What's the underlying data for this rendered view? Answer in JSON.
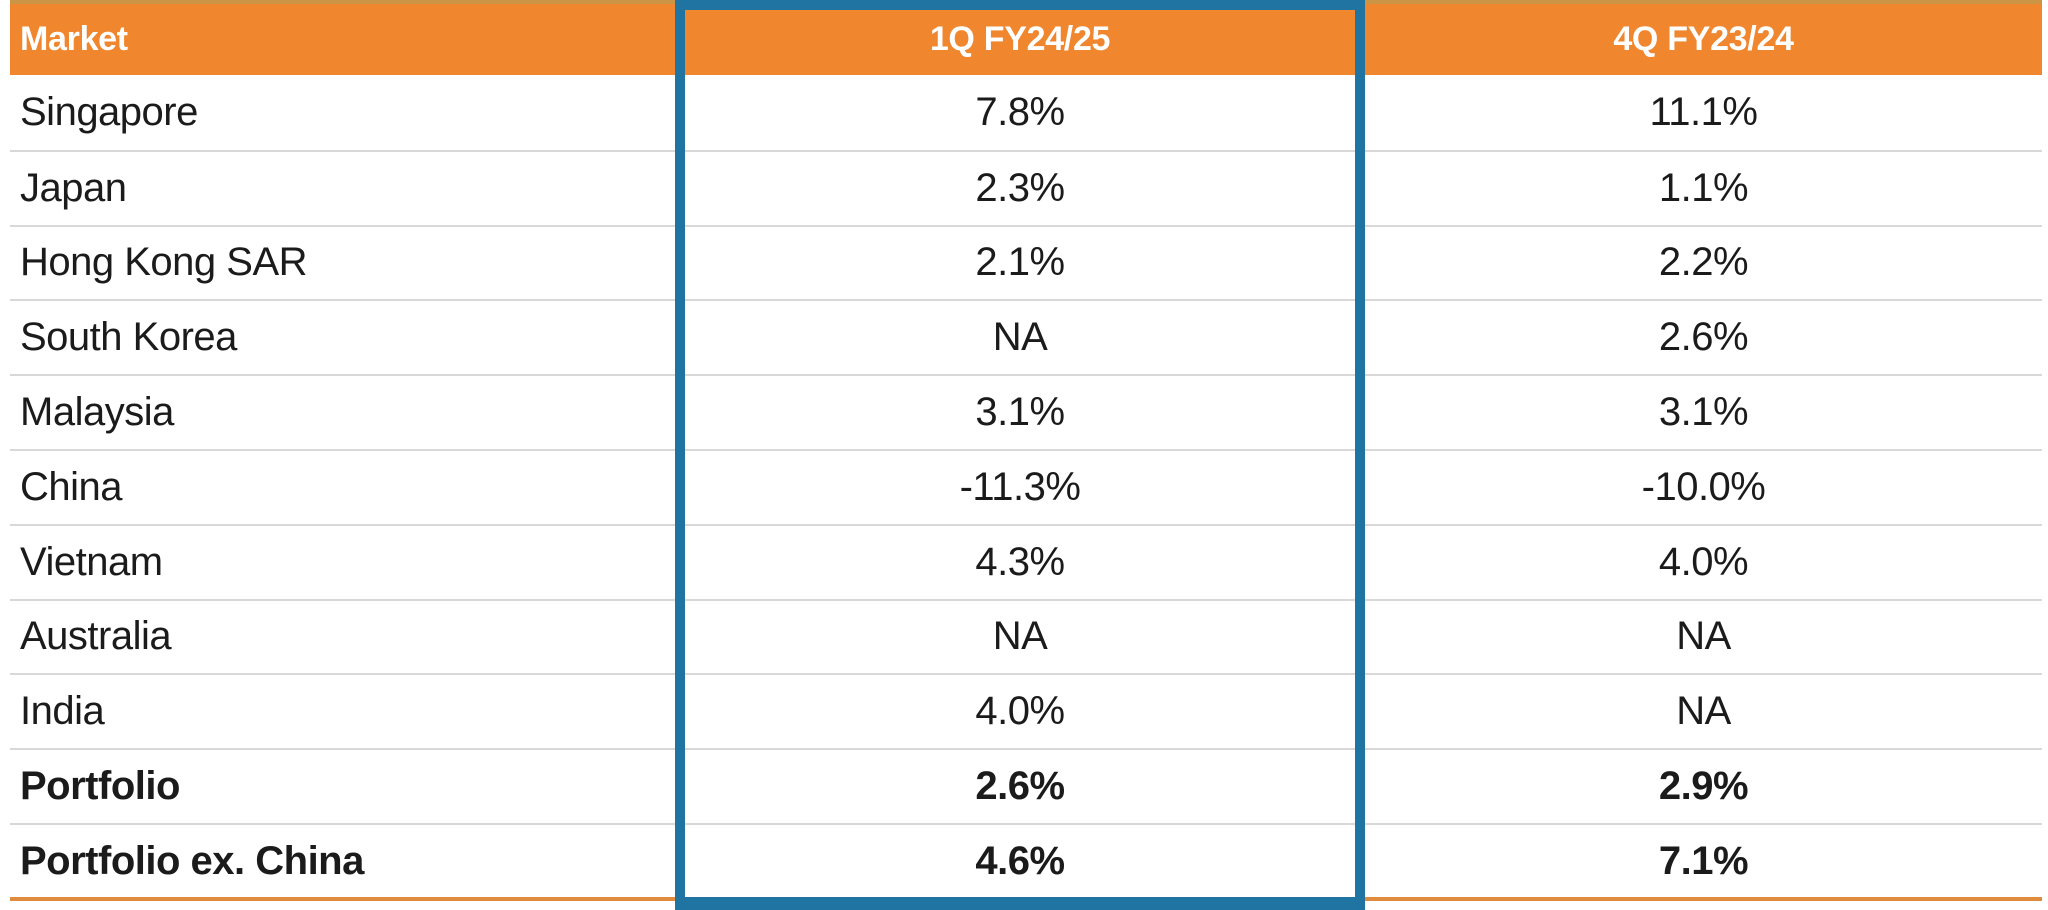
{
  "table": {
    "columns": [
      {
        "label": "Market",
        "align": "left"
      },
      {
        "label": "1Q FY24/25",
        "align": "center",
        "highlighted": true
      },
      {
        "label": "4Q FY23/24",
        "align": "center"
      }
    ],
    "rows": [
      {
        "market": "Singapore",
        "q1": "7.8%",
        "q4": "11.1%",
        "bold": false
      },
      {
        "market": "Japan",
        "q1": "2.3%",
        "q4": "1.1%",
        "bold": false
      },
      {
        "market": "Hong Kong SAR",
        "q1": "2.1%",
        "q4": "2.2%",
        "bold": false
      },
      {
        "market": "South Korea",
        "q1": "NA",
        "q4": "2.6%",
        "bold": false
      },
      {
        "market": "Malaysia",
        "q1": "3.1%",
        "q4": "3.1%",
        "bold": false
      },
      {
        "market": "China",
        "q1": "-11.3%",
        "q4": "-10.0%",
        "bold": false
      },
      {
        "market": "Vietnam",
        "q1": "4.3%",
        "q4": "4.0%",
        "bold": false
      },
      {
        "market": "Australia",
        "q1": "NA",
        "q4": "NA",
        "bold": false
      },
      {
        "market": "India",
        "q1": "4.0%",
        "q4": "NA",
        "bold": false
      },
      {
        "market": "Portfolio",
        "q1": "2.6%",
        "q4": "2.9%",
        "bold": true
      },
      {
        "market": "Portfolio ex. China",
        "q1": "4.6%",
        "q4": "7.1%",
        "bold": true
      }
    ]
  },
  "chart_data": {
    "type": "table",
    "columns": [
      "Market",
      "1Q FY24/25",
      "4Q FY23/24"
    ],
    "rows": [
      [
        "Singapore",
        "7.8%",
        "11.1%"
      ],
      [
        "Japan",
        "2.3%",
        "1.1%"
      ],
      [
        "Hong Kong SAR",
        "2.1%",
        "2.2%"
      ],
      [
        "South Korea",
        "NA",
        "2.6%"
      ],
      [
        "Malaysia",
        "3.1%",
        "3.1%"
      ],
      [
        "China",
        "-11.3%",
        "-10.0%"
      ],
      [
        "Vietnam",
        "4.3%",
        "4.0%"
      ],
      [
        "Australia",
        "NA",
        "NA"
      ],
      [
        "India",
        "4.0%",
        "NA"
      ],
      [
        "Portfolio",
        "2.6%",
        "2.9%"
      ],
      [
        "Portfolio ex. China",
        "4.6%",
        "7.1%"
      ]
    ],
    "highlighted_column": "1Q FY24/25",
    "bold_rows": [
      "Portfolio",
      "Portfolio ex. China"
    ],
    "values_numeric_pct": {
      "1Q FY24/25": [
        7.8,
        2.3,
        2.1,
        null,
        3.1,
        -11.3,
        4.3,
        null,
        4.0,
        2.6,
        4.6
      ],
      "4Q FY23/24": [
        11.1,
        1.1,
        2.2,
        2.6,
        3.1,
        -10.0,
        4.0,
        null,
        null,
        2.9,
        7.1
      ]
    }
  },
  "colors": {
    "header_background": "#F0862E",
    "header_text": "#FFFFFF",
    "header_top_edge": "#CC9546",
    "body_text": "#1B1B1B",
    "row_separator": "#D8D8D8",
    "highlight_border": "#1F74A2",
    "bottom_accent_line": "#E08C3E"
  }
}
